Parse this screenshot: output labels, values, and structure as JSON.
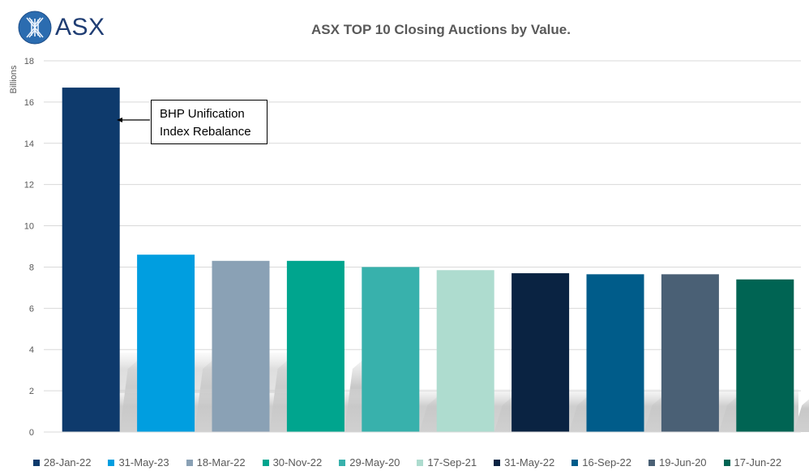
{
  "logo": {
    "text": "ASX",
    "icon": "asx-x-logo-icon"
  },
  "chart_data": {
    "type": "bar",
    "title": "ASX TOP 10 Closing Auctions by Value.",
    "xlabel": "",
    "ylabel": "Billions",
    "ylim": [
      0,
      18
    ],
    "yticks": [
      0,
      2,
      4,
      6,
      8,
      10,
      12,
      14,
      16,
      18
    ],
    "grid": true,
    "legend_position": "bottom",
    "categories": [
      "28-Jan-22",
      "31-May-23",
      "18-Mar-22",
      "30-Nov-22",
      "29-May-20",
      "17-Sep-21",
      "31-May-22",
      "16-Sep-22",
      "19-Jun-20",
      "17-Jun-22"
    ],
    "values": [
      16.7,
      8.6,
      8.3,
      8.3,
      8.0,
      7.85,
      7.7,
      7.65,
      7.65,
      7.4
    ],
    "colors": [
      "#0e3a6c",
      "#009ee0",
      "#8aa1b5",
      "#00a58e",
      "#38b1ac",
      "#aedccf",
      "#0a2342",
      "#005c8a",
      "#4a6075",
      "#006453"
    ],
    "annotations": [
      {
        "text_line1": "BHP Unification",
        "text_line2": "Index Rebalance",
        "target": "28-Jan-22"
      }
    ]
  }
}
